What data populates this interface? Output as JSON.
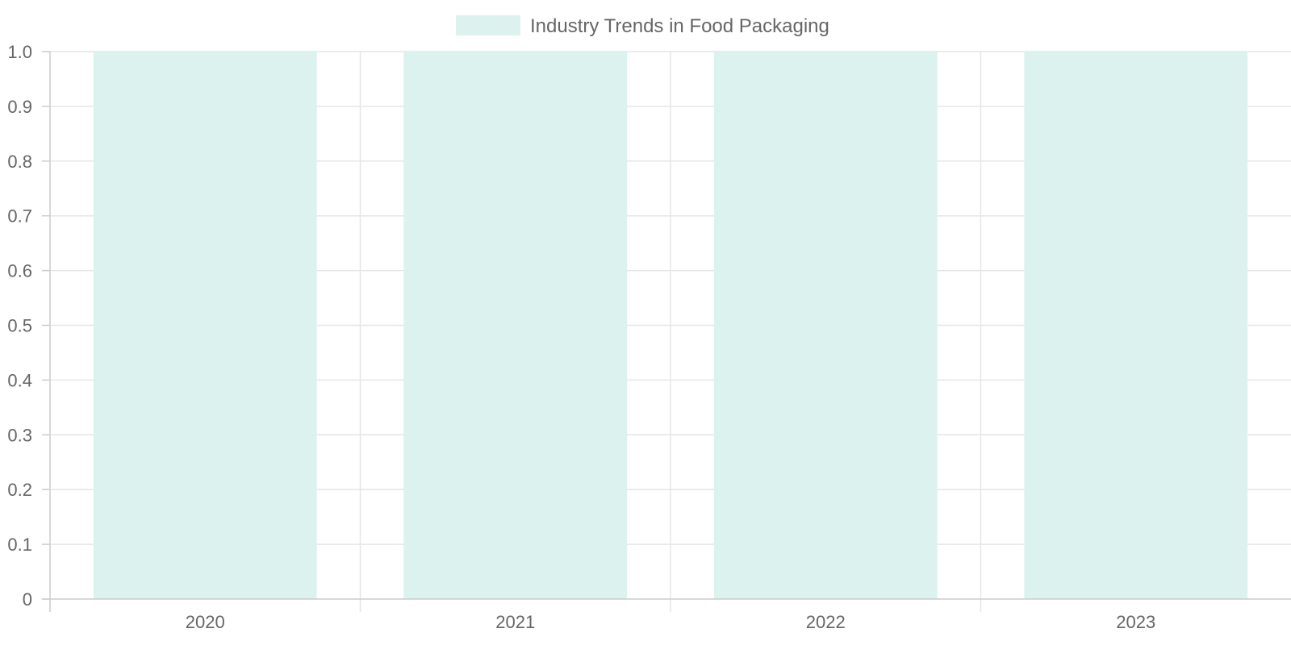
{
  "chart_data": {
    "type": "bar",
    "categories": [
      "2020",
      "2021",
      "2022",
      "2023"
    ],
    "series": [
      {
        "name": "Industry Trends in Food Packaging",
        "values": [
          1,
          1,
          1,
          1
        ]
      }
    ],
    "title": "",
    "xlabel": "",
    "ylabel": "",
    "ylim": [
      0,
      1
    ],
    "yticks": [
      "0",
      "0.1",
      "0.2",
      "0.3",
      "0.4",
      "0.5",
      "0.6",
      "0.7",
      "0.8",
      "0.9",
      "1.0"
    ],
    "grid": true,
    "legend_position": "top-center",
    "colors": {
      "bar_fill": "#dcf2ef",
      "grid": "#e6e6e6",
      "axis": "#cccccc",
      "text": "#666666"
    }
  }
}
